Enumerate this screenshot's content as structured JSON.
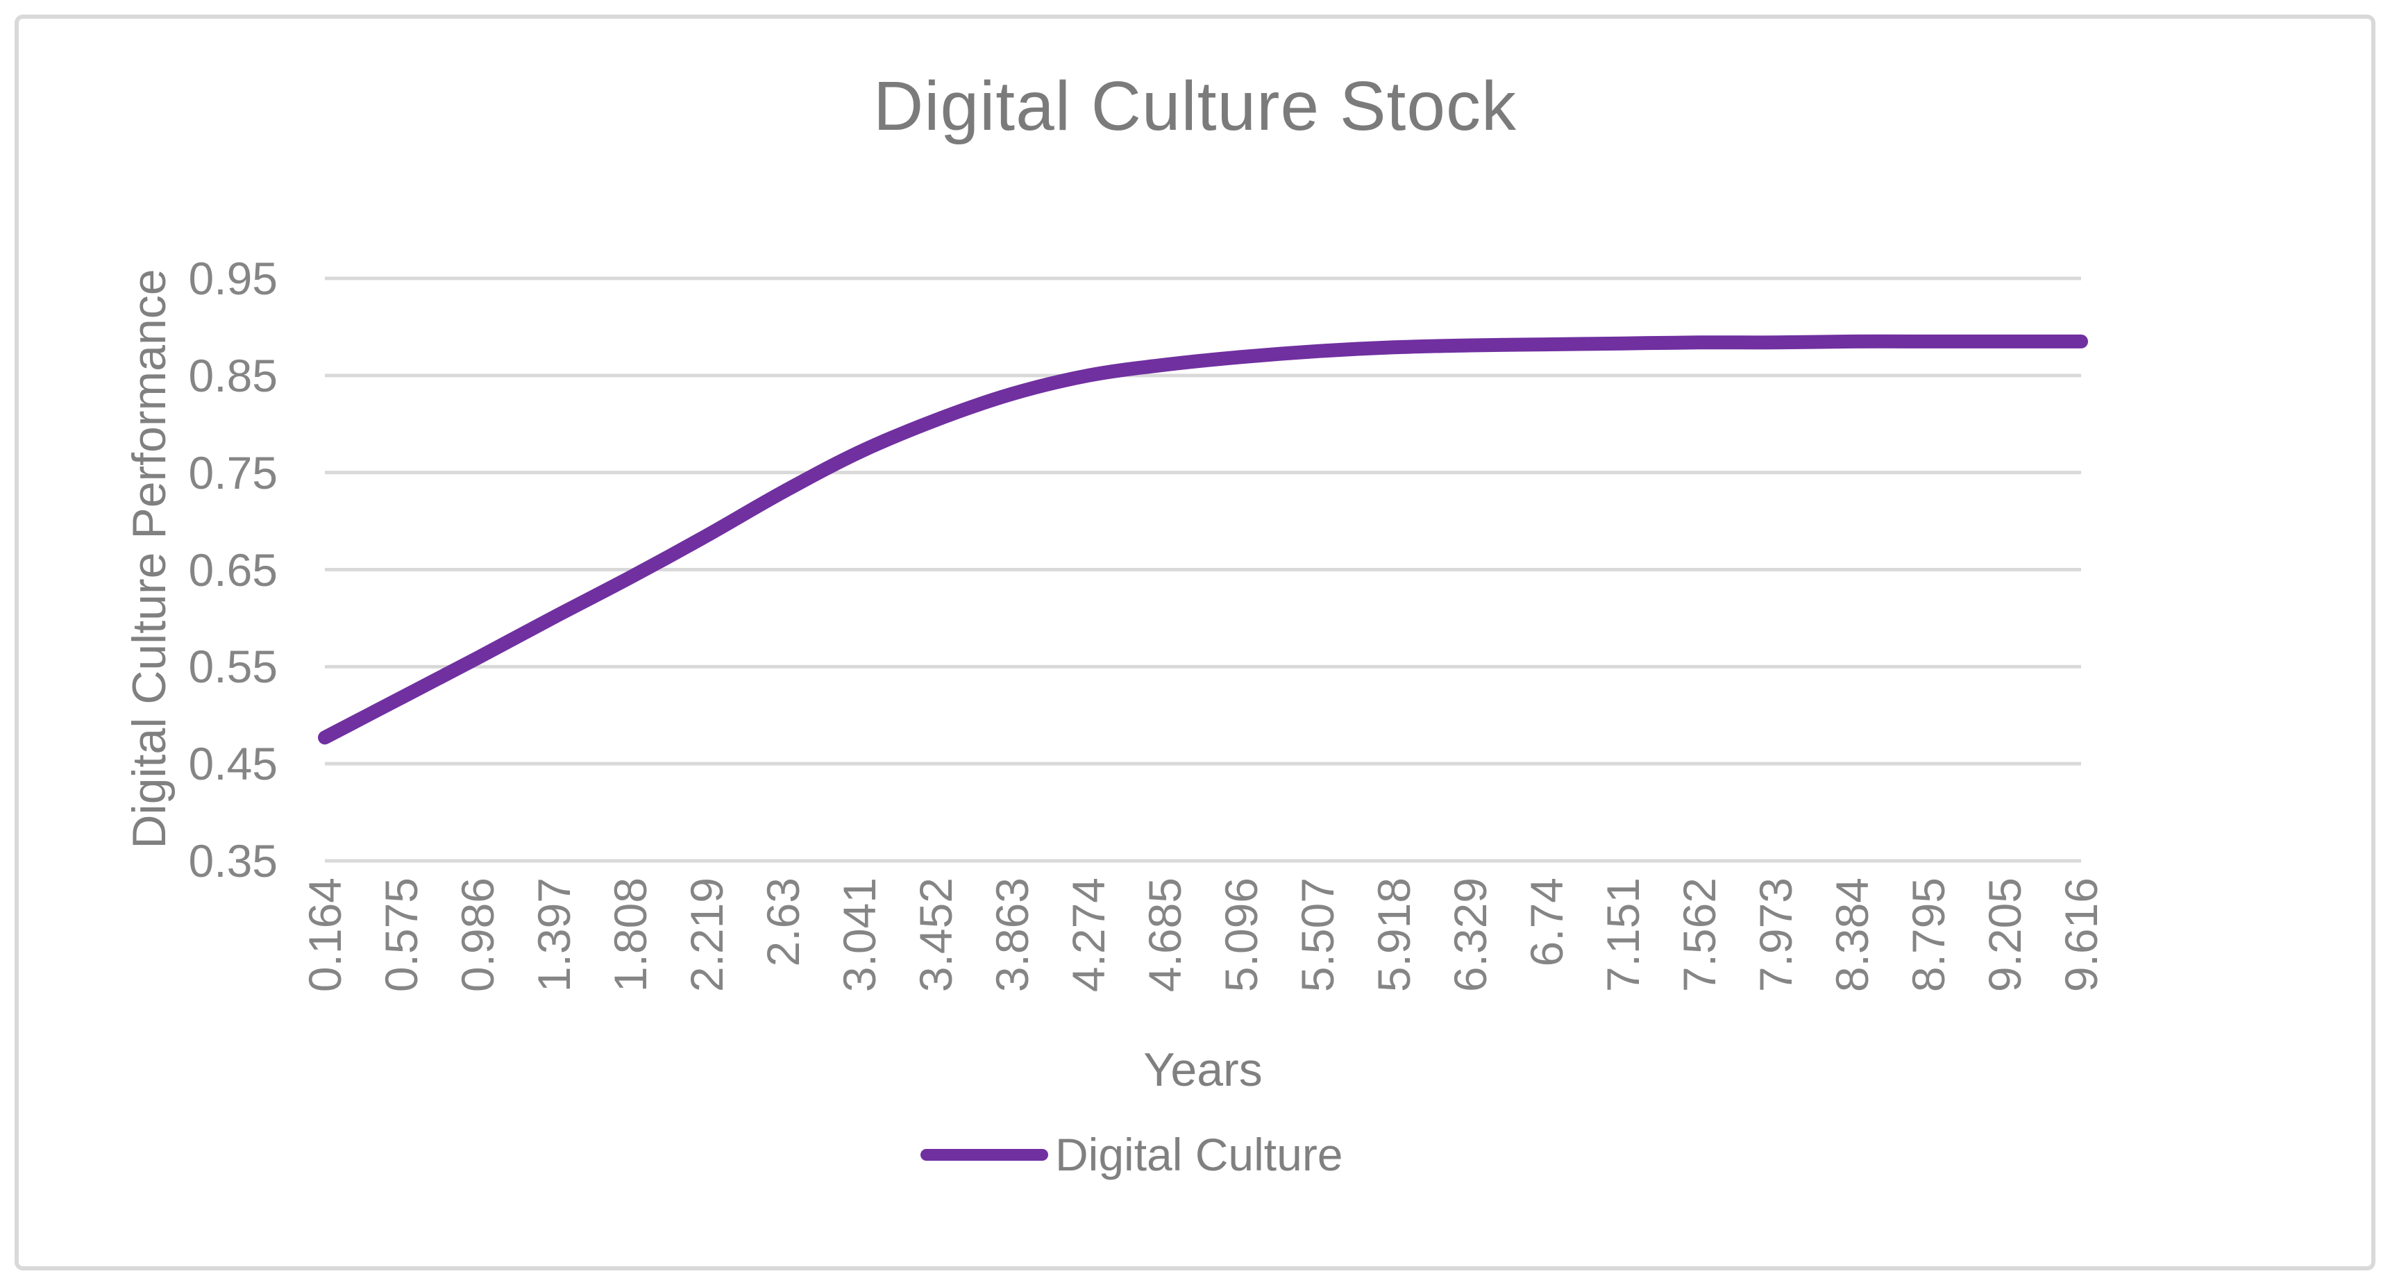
{
  "window": {
    "background": "#FFFFFF",
    "border_color": "#D9D9D9"
  },
  "colors": {
    "line": "#7030A0",
    "grid": "#D9D9D9",
    "axis_text": "#858585",
    "title_text": "#7B7B7B",
    "label_text": "#808080"
  },
  "chart_data": {
    "type": "line",
    "title": "Digital Culture Stock",
    "xlabel": "Years",
    "ylabel": "Digital Culture Performance",
    "legend_position": "bottom",
    "grid": "horizontal",
    "ylim": [
      0.35,
      0.95
    ],
    "y_ticks": [
      "0.95",
      "0.85",
      "0.75",
      "0.65",
      "0.55",
      "0.45",
      "0.35"
    ],
    "categories": [
      "0.164",
      "0.575",
      "0.986",
      "1.397",
      "1.808",
      "2.219",
      "2.63",
      "3.041",
      "3.452",
      "3.863",
      "4.274",
      "4.685",
      "5.096",
      "5.507",
      "5.918",
      "6.329",
      "6.74",
      "7.151",
      "7.562",
      "7.973",
      "8.384",
      "8.795",
      "9.205",
      "9.616"
    ],
    "series": [
      {
        "name": "Digital Culture",
        "color": "#7030A0",
        "values": [
          0.477,
          0.518,
          0.559,
          0.601,
          0.642,
          0.685,
          0.73,
          0.771,
          0.804,
          0.831,
          0.85,
          0.861,
          0.869,
          0.875,
          0.879,
          0.881,
          0.882,
          0.883,
          0.884,
          0.884,
          0.885,
          0.885,
          0.885,
          0.885
        ]
      }
    ]
  }
}
